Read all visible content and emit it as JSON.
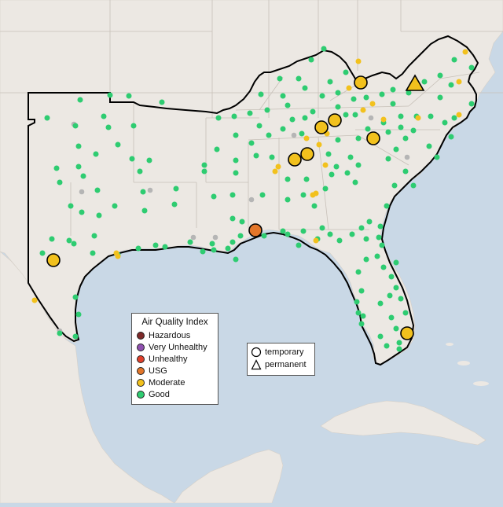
{
  "legend": {
    "title": "Air Quality Index",
    "categories": [
      {
        "label": "Hazardous",
        "color": "#7e2a2a"
      },
      {
        "label": "Very Unhealthy",
        "color": "#8f50b0"
      },
      {
        "label": "Unhealthy",
        "color": "#e0402c"
      },
      {
        "label": "USG",
        "color": "#e3762a"
      },
      {
        "label": "Moderate",
        "color": "#f2c11d"
      },
      {
        "label": "Good",
        "color": "#2ecc71"
      }
    ]
  },
  "site_legend": {
    "items": [
      {
        "label": "temporary",
        "shape": "circle"
      },
      {
        "label": "permanent",
        "shape": "triangle"
      }
    ]
  },
  "colors": {
    "water": "#c9d8e6",
    "land": "#ece8e3",
    "region_outline": "#000000",
    "no_data": "#b5b5b5"
  }
}
